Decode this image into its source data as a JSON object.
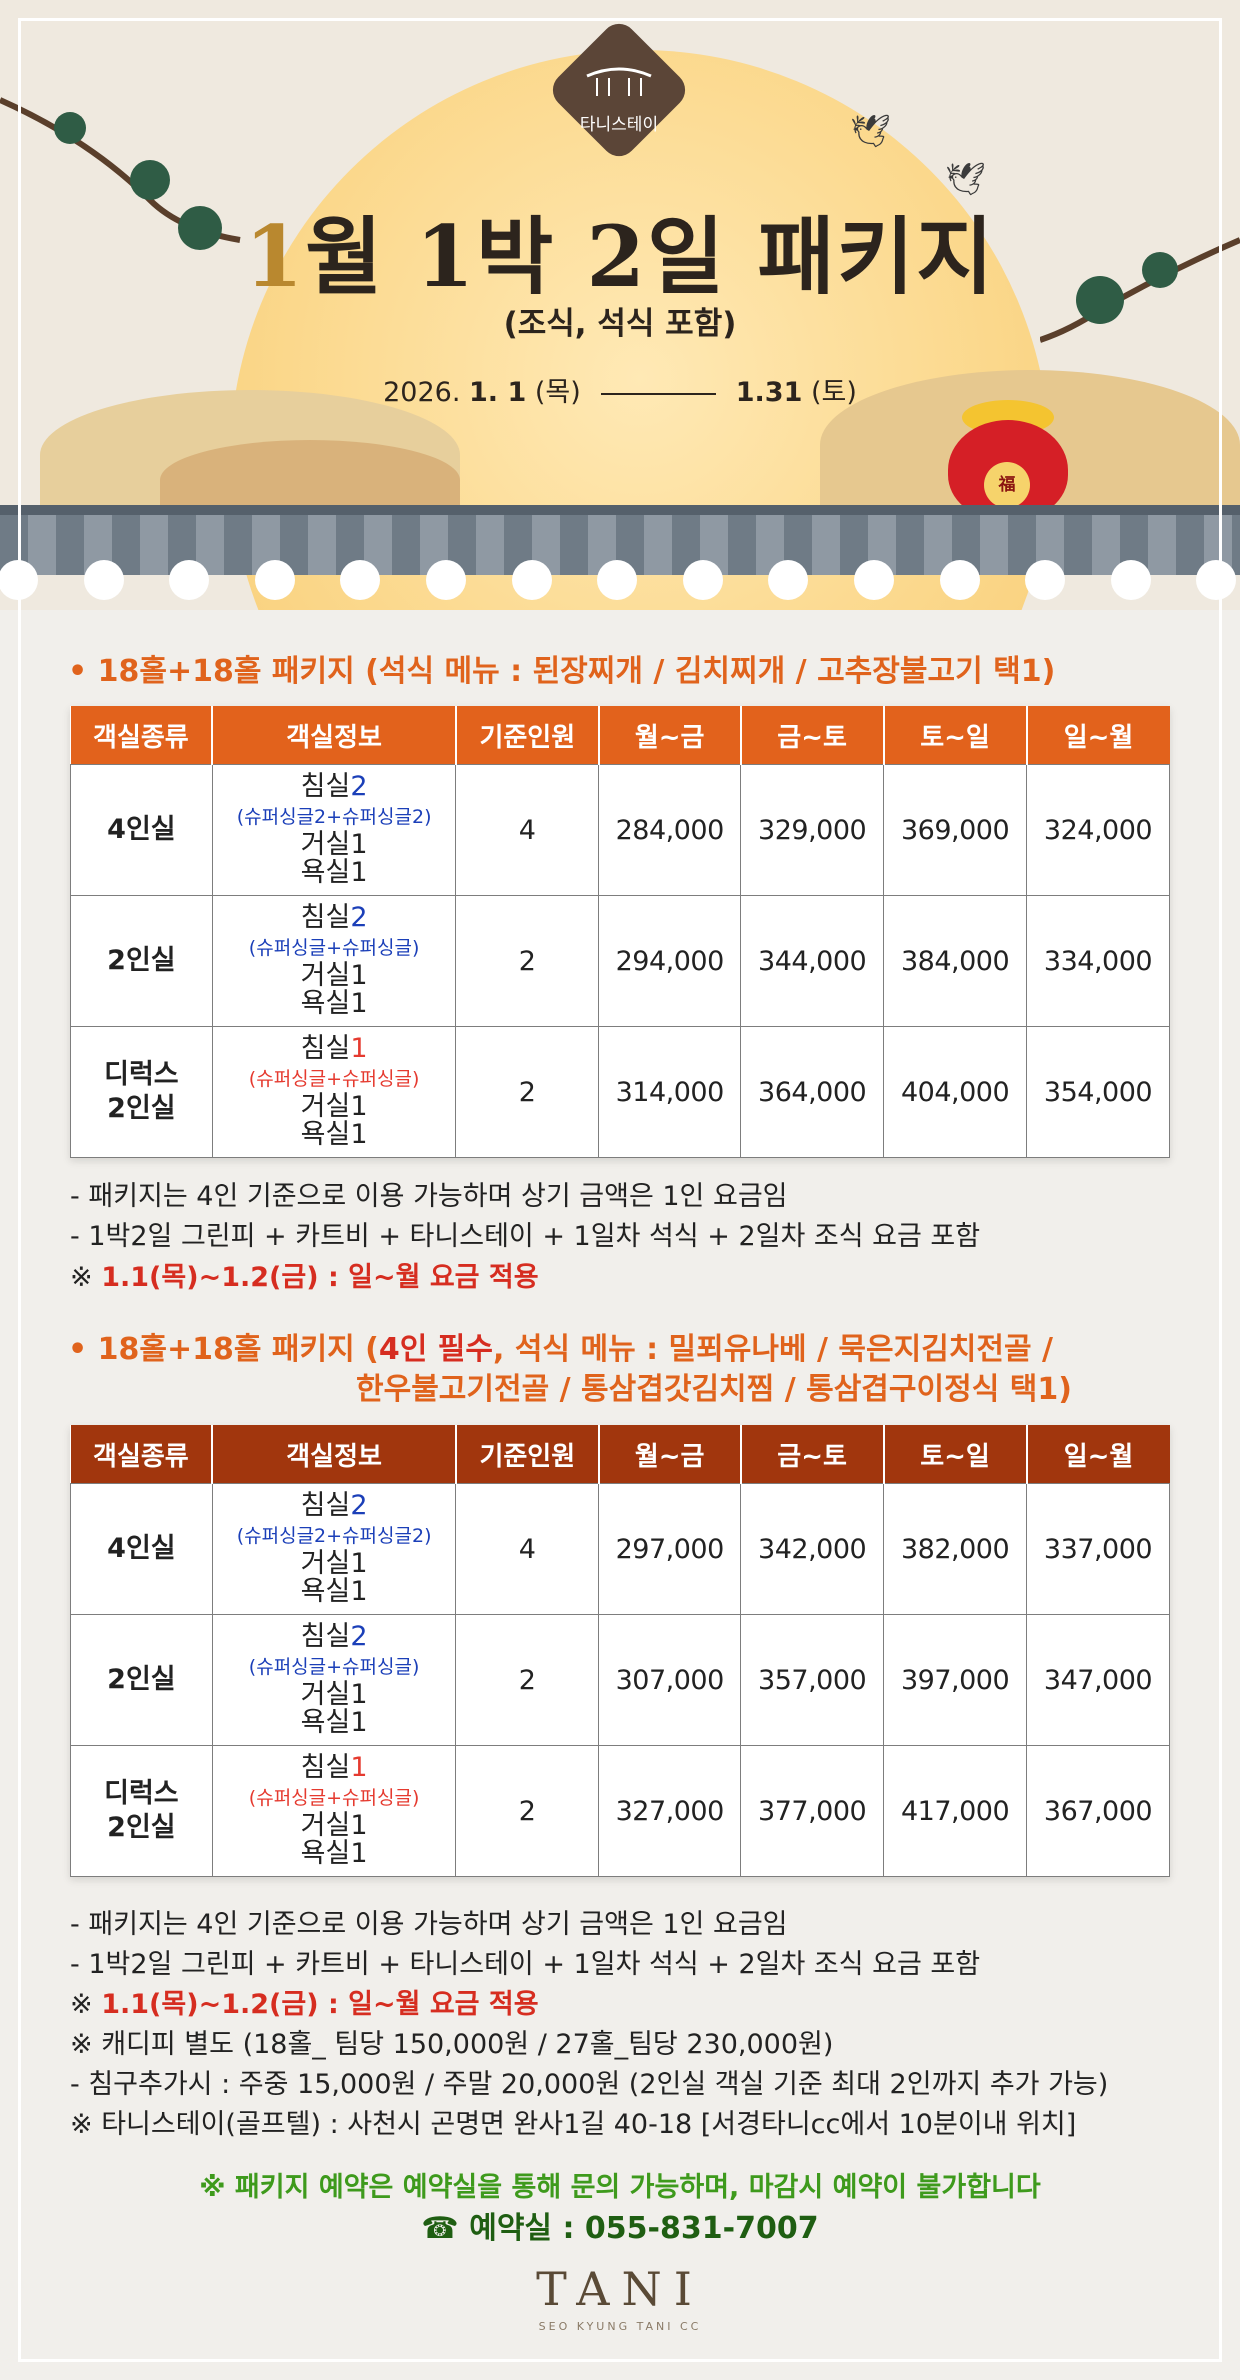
{
  "hero": {
    "logo_text": "타니스테이",
    "title_num": "1",
    "title_rest": "월 1박 2일 패키지",
    "subtitle": "(조식, 석식 포함)",
    "date_start_plain": "2026. ",
    "date_start_bold": "1. 1",
    "date_start_day": " (목)",
    "date_end_bold": "1.31",
    "date_end_day": " (토)",
    "pouch_seal": "福"
  },
  "table_headers": [
    "객실종류",
    "객실정보",
    "기준인원",
    "월~금",
    "금~토",
    "토~일",
    "일~월"
  ],
  "section1": {
    "title": "• 18홀+18홀 패키지 (석식 메뉴 : 된장찌개 / 김치찌개 / 고추장불고기 택1)",
    "rows": [
      {
        "type": "4인실",
        "bed": "침실",
        "bed_num": "2",
        "bed_detail": "(슈퍼싱글2+슈퍼싱글2)",
        "living": "거실1",
        "bath": "욕실1",
        "pax": "4",
        "p1": "284,000",
        "p2": "329,000",
        "p3": "369,000",
        "p4": "324,000"
      },
      {
        "type": "2인실",
        "bed": "침실",
        "bed_num": "2",
        "bed_detail": "(슈퍼싱글+슈퍼싱글)",
        "living": "거실1",
        "bath": "욕실1",
        "pax": "2",
        "p1": "294,000",
        "p2": "344,000",
        "p3": "384,000",
        "p4": "334,000"
      },
      {
        "type_line1": "디럭스",
        "type_line2": "2인실",
        "bed": "침실",
        "bed_num": "1",
        "bed_detail": "(슈퍼싱글+슈퍼싱글)",
        "living": "거실1",
        "bath": "욕실1",
        "pax": "2",
        "p1": "314,000",
        "p2": "364,000",
        "p3": "404,000",
        "p4": "354,000"
      }
    ],
    "note1": "- 패키지는 4인 기준으로 이용 가능하며 상기 금액은 1인 요금임",
    "note2": "- 1박2일 그린피 + 카트비 + 타니스테이 + 1일차 석식 + 2일차 조식 요금 포함",
    "note3_prefix": "※ ",
    "note3": "1.1(목)~1.2(금) : 일~월 요금 적용"
  },
  "section2": {
    "title_a": "• 18홀+18홀 패키지 (",
    "title_red": "4인 필수",
    "title_b": ", 석식 메뉴 : 밀푀유나베 / 묵은지김치전골 /",
    "title_line2": "한우불고기전골 / 통삼겹갓김치찜 / 통삼겹구이정식 택1)",
    "rows": [
      {
        "type": "4인실",
        "bed": "침실",
        "bed_num": "2",
        "bed_detail": "(슈퍼싱글2+슈퍼싱글2)",
        "living": "거실1",
        "bath": "욕실1",
        "pax": "4",
        "p1": "297,000",
        "p2": "342,000",
        "p3": "382,000",
        "p4": "337,000"
      },
      {
        "type": "2인실",
        "bed": "침실",
        "bed_num": "2",
        "bed_detail": "(슈퍼싱글+슈퍼싱글)",
        "living": "거실1",
        "bath": "욕실1",
        "pax": "2",
        "p1": "307,000",
        "p2": "357,000",
        "p3": "397,000",
        "p4": "347,000"
      },
      {
        "type_line1": "디럭스",
        "type_line2": "2인실",
        "bed": "침실",
        "bed_num": "1",
        "bed_detail": "(슈퍼싱글+슈퍼싱글)",
        "living": "거실1",
        "bath": "욕실1",
        "pax": "2",
        "p1": "327,000",
        "p2": "377,000",
        "p3": "417,000",
        "p4": "367,000"
      }
    ],
    "note1": "- 패키지는 4인 기준으로 이용 가능하며 상기 금액은 1인 요금임",
    "note2": "- 1박2일 그린피 + 카트비 + 타니스테이 + 1일차 석식 + 2일차 조식 요금 포함",
    "note3_prefix": "※ ",
    "note3": "1.1(목)~1.2(금) : 일~월 요금 적용",
    "note4": "※ 캐디피 별도 (18홀_ 팀당 150,000원 / 27홀_팀당 230,000원)",
    "note5": " - 침구추가시 : 주중 15,000원 / 주말 20,000원  (2인실 객실 기준 최대 2인까지 추가 가능)",
    "note6": "※ 타니스테이(골프텔) : 사천시 곤명면 완사1길 40-18 [서경타니cc에서 10분이내 위치]"
  },
  "footer": {
    "green_notice": "※ 패키지 예약은 예약실을 통해 문의 가능하며, 마감시 예약이 불가합니다",
    "phone": "☎ 예약실 : 055-831-7007",
    "brand": "TANI",
    "brand_sub": "SEO KYUNG TANI CC"
  },
  "colors": {
    "accent_orange": "#e2621c",
    "accent_brown": "#a1360d",
    "room4": "#e6451a",
    "room2": "#f28a14",
    "deluxe": "#7b48d8",
    "green": "#3e9a1c"
  }
}
